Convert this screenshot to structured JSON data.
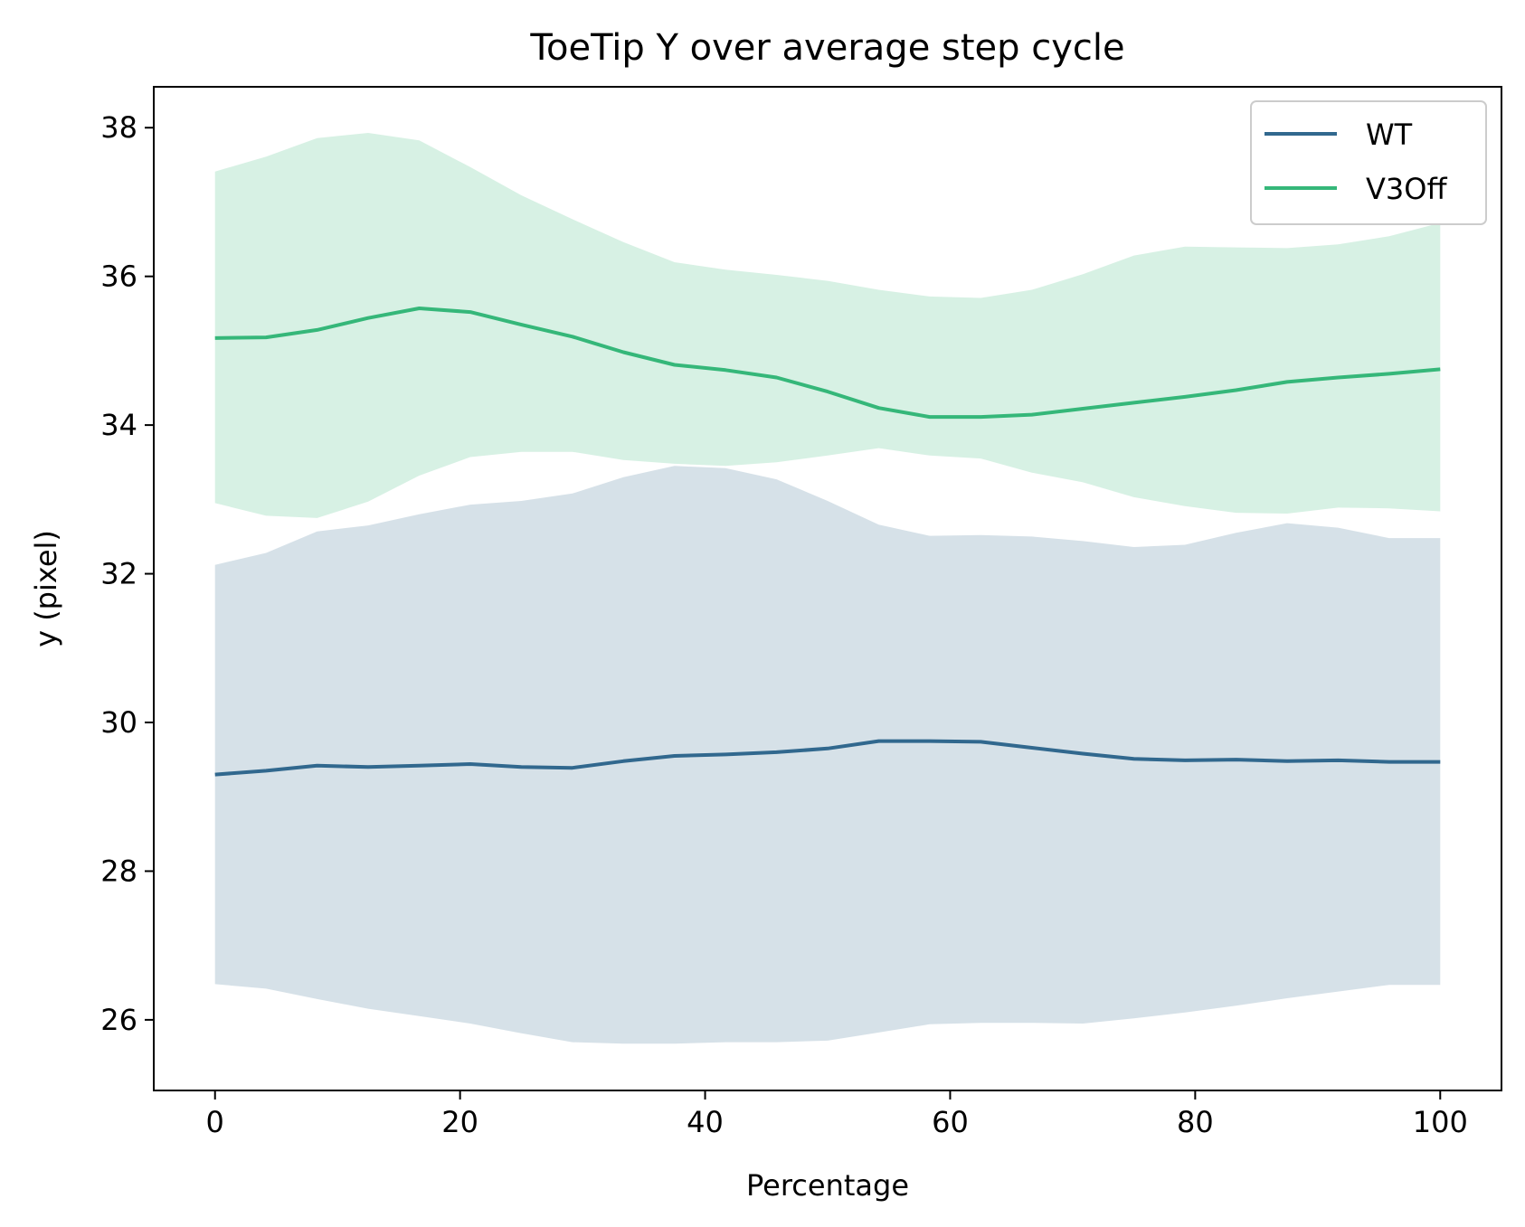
{
  "chart_data": {
    "type": "line",
    "title": "ToeTip Y over average step cycle",
    "xlabel": "Percentage",
    "ylabel": "y (pixel)",
    "xlim": [
      -5,
      105
    ],
    "ylim": [
      25.05,
      38.55
    ],
    "xticks": [
      0,
      20,
      40,
      60,
      80,
      100
    ],
    "yticks": [
      26,
      28,
      30,
      32,
      34,
      36,
      38
    ],
    "grid": false,
    "legend_position": "top-right",
    "x": [
      0,
      4.17,
      8.33,
      12.5,
      16.67,
      20.83,
      25,
      29.17,
      33.33,
      37.5,
      41.67,
      45.83,
      50,
      54.17,
      58.33,
      62.5,
      66.67,
      70.83,
      75,
      79.17,
      83.33,
      87.5,
      91.67,
      95.83,
      100
    ],
    "series": [
      {
        "name": "WT",
        "color": "#31688e",
        "band_color": "#d5e0e9",
        "values": [
          29.3,
          29.35,
          29.42,
          29.4,
          29.42,
          29.44,
          29.4,
          29.39,
          29.48,
          29.55,
          29.57,
          29.6,
          29.65,
          29.75,
          29.75,
          29.74,
          29.66,
          29.58,
          29.51,
          29.49,
          29.5,
          29.48,
          29.49,
          29.47,
          29.47
        ],
        "lower": [
          26.48,
          26.42,
          26.28,
          26.15,
          26.05,
          25.95,
          25.82,
          25.7,
          25.68,
          25.68,
          25.7,
          25.7,
          25.72,
          25.83,
          25.94,
          25.96,
          25.96,
          25.95,
          26.02,
          26.1,
          26.19,
          26.29,
          26.38,
          26.47,
          26.47
        ],
        "upper": [
          32.12,
          32.28,
          32.57,
          32.65,
          32.8,
          32.93,
          32.98,
          33.08,
          33.3,
          33.45,
          33.42,
          33.27,
          32.98,
          32.66,
          32.51,
          32.52,
          32.5,
          32.44,
          32.36,
          32.39,
          32.55,
          32.68,
          32.62,
          32.48,
          32.48
        ]
      },
      {
        "name": "V3Off",
        "color": "#35b779",
        "band_color": "#d7efe2",
        "values": [
          35.17,
          35.18,
          35.28,
          35.44,
          35.57,
          35.52,
          35.35,
          35.19,
          34.98,
          34.81,
          34.74,
          34.64,
          34.45,
          34.23,
          34.11,
          34.11,
          34.14,
          34.22,
          34.3,
          34.38,
          34.47,
          34.58,
          34.64,
          34.69,
          34.75
        ],
        "lower": [
          32.95,
          32.78,
          32.75,
          32.97,
          33.32,
          33.57,
          33.64,
          33.64,
          33.53,
          33.48,
          33.45,
          33.5,
          33.59,
          33.69,
          33.59,
          33.55,
          33.36,
          33.23,
          33.03,
          32.91,
          32.82,
          32.81,
          32.89,
          32.88,
          32.84
        ],
        "upper": [
          37.41,
          37.61,
          37.86,
          37.93,
          37.83,
          37.47,
          37.09,
          36.77,
          36.46,
          36.19,
          36.09,
          36.02,
          35.94,
          35.82,
          35.73,
          35.71,
          35.82,
          36.03,
          36.28,
          36.4,
          36.39,
          36.38,
          36.43,
          36.54,
          36.72
        ]
      }
    ]
  }
}
